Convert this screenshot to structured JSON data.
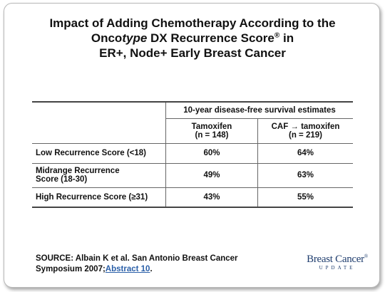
{
  "title": {
    "line1": "Impact of Adding Chemotherapy According to the",
    "line2_a": "Onco",
    "line2_b": "type",
    "line2_c": " DX Recurrence Score",
    "line2_sup": "®",
    "line2_d": " in",
    "line3": "ER+, Node+ Early Breast Cancer"
  },
  "table": {
    "group_header": "10-year disease-free survival estimates",
    "columns": [
      {
        "name": "Tamoxifen",
        "n": "(n = 148)"
      },
      {
        "name": "CAF → tamoxifen",
        "n": "(n = 219)"
      }
    ],
    "rows": [
      [
        "Low Recurrence Score (<18)",
        "60%",
        "64%"
      ],
      [
        "Midrange Recurrence Score (18-30)",
        "49%",
        "63%"
      ],
      [
        "High Recurrence Score (≥31)",
        "43%",
        "55%"
      ]
    ]
  },
  "source": {
    "text": "SOURCE: Albain K et al. San Antonio Breast Cancer Symposium 2007;",
    "link": "Abstract 10",
    "end": "."
  },
  "logo": {
    "name": "Breast Cancer",
    "mark": "®",
    "sub": "UPDATE"
  }
}
